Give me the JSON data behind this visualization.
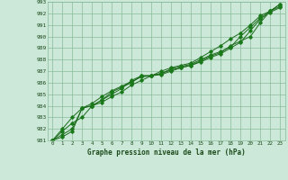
{
  "title": "Graphe pression niveau de la mer (hPa)",
  "x_values": [
    0,
    1,
    2,
    3,
    4,
    5,
    6,
    7,
    8,
    9,
    10,
    11,
    12,
    13,
    14,
    15,
    16,
    17,
    18,
    19,
    20,
    21,
    22,
    23
  ],
  "line1": [
    981.0,
    981.8,
    982.5,
    983.0,
    984.0,
    984.5,
    985.0,
    985.5,
    986.2,
    986.6,
    986.6,
    986.7,
    987.0,
    987.3,
    987.5,
    987.8,
    988.2,
    988.5,
    989.0,
    989.5,
    990.5,
    991.5,
    992.1,
    992.5
  ],
  "line2": [
    981.0,
    982.0,
    983.0,
    983.8,
    984.0,
    984.5,
    985.2,
    985.6,
    986.0,
    986.6,
    986.6,
    986.8,
    987.1,
    987.3,
    987.5,
    987.9,
    988.3,
    988.6,
    989.2,
    989.6,
    990.0,
    991.2,
    992.2,
    992.8
  ],
  "line3": [
    981.0,
    981.5,
    982.0,
    983.8,
    984.2,
    984.8,
    985.3,
    985.7,
    986.1,
    986.5,
    986.6,
    987.0,
    987.3,
    987.5,
    987.7,
    988.2,
    988.7,
    989.2,
    989.8,
    990.3,
    991.0,
    991.8,
    992.2,
    992.6
  ],
  "line4": [
    981.0,
    981.3,
    981.8,
    983.8,
    984.0,
    984.3,
    984.8,
    985.2,
    985.8,
    986.2,
    986.6,
    986.8,
    987.2,
    987.4,
    987.6,
    988.0,
    988.4,
    988.7,
    989.1,
    990.0,
    990.8,
    991.6,
    992.2,
    992.8
  ],
  "line_color": "#1a6b1a",
  "marker_color": "#1a7a1a",
  "bg_color": "#cce8d8",
  "grid_color": "#88bb99",
  "text_color": "#1a4a1a",
  "ylim": [
    981,
    993
  ],
  "yticks": [
    981,
    982,
    983,
    984,
    985,
    986,
    987,
    988,
    989,
    990,
    991,
    992,
    993
  ],
  "xlim": [
    0,
    23
  ],
  "xticks": [
    0,
    1,
    2,
    3,
    4,
    5,
    6,
    7,
    8,
    9,
    10,
    11,
    12,
    13,
    14,
    15,
    16,
    17,
    18,
    19,
    20,
    21,
    22,
    23
  ]
}
